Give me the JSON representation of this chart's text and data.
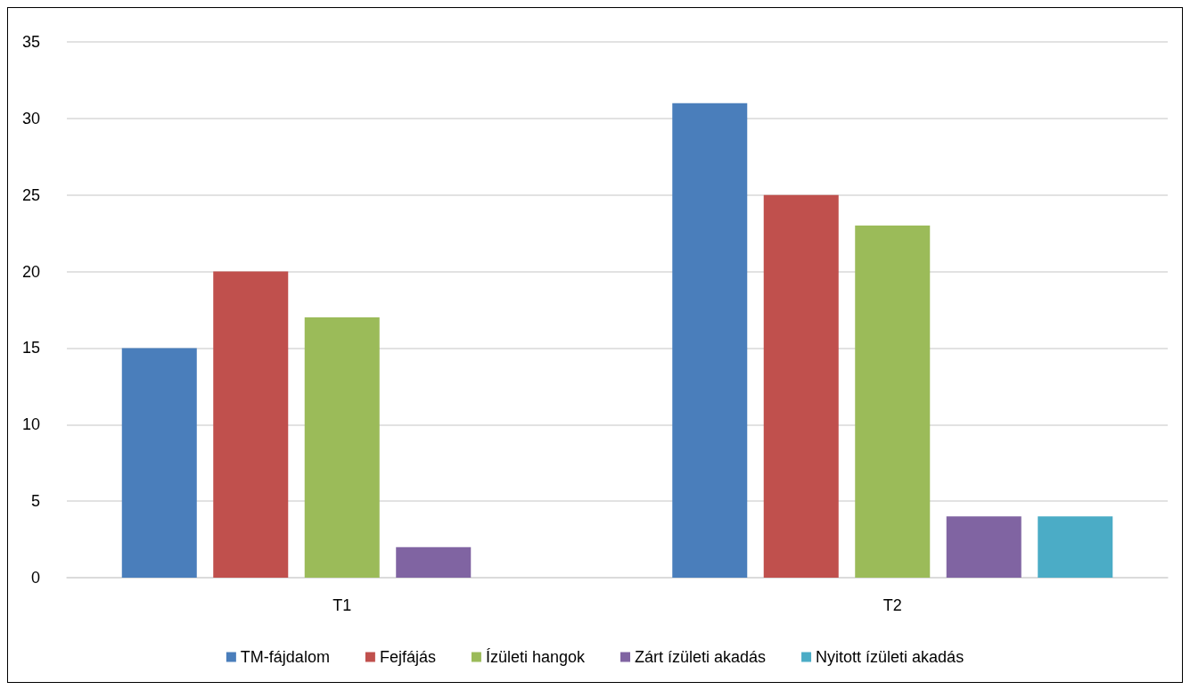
{
  "chart_data": {
    "type": "bar",
    "categories": [
      "T1",
      "T2"
    ],
    "series": [
      {
        "name": "TM-fájdalom",
        "color": "#4a7ebb",
        "values": [
          15,
          31
        ]
      },
      {
        "name": "Fejfájás",
        "color": "#c0504d",
        "values": [
          20,
          25
        ]
      },
      {
        "name": "Ízületi hangok",
        "color": "#9bbb59",
        "values": [
          17,
          23
        ]
      },
      {
        "name": "Zárt ízületi akadás",
        "color": "#8064a2",
        "values": [
          2,
          4
        ]
      },
      {
        "name": "Nyitott ízületi akadás",
        "color": "#4bacc6",
        "values": [
          null,
          4
        ]
      }
    ],
    "ylim": [
      0,
      35
    ],
    "yticks": [
      0,
      5,
      10,
      15,
      20,
      25,
      30,
      35
    ],
    "grid": "y",
    "legend": "bottom"
  }
}
